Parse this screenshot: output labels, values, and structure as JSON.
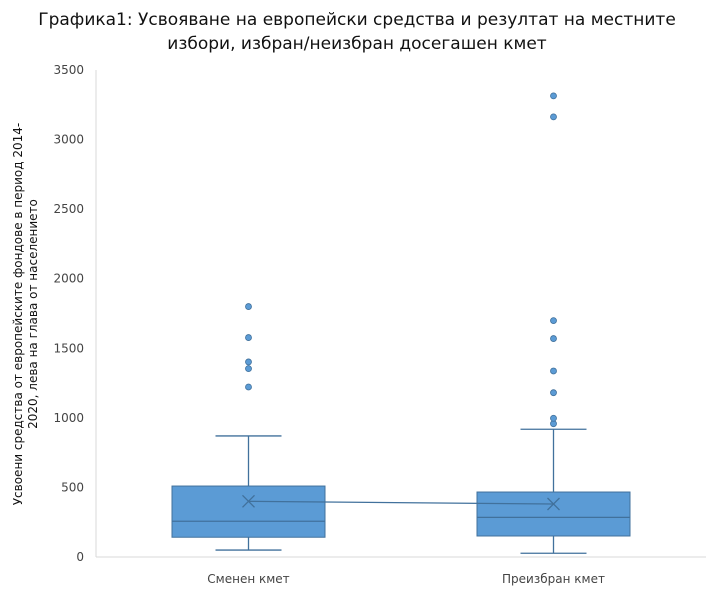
{
  "chart_data": {
    "type": "box",
    "title_lines": [
      "Графика1: Усвояване на европейски средства и резултат на местните",
      "избори, избран/неизбран досегашен кмет"
    ],
    "ylabel_lines": [
      "Усвоени средства от европейските фондове в период 2014-",
      "2020, лева на глава от населението"
    ],
    "xlabel": "",
    "ylim": [
      0,
      3500
    ],
    "yticks": [
      0,
      500,
      1000,
      1500,
      2000,
      2500,
      3000,
      3500
    ],
    "grid": false,
    "color": "#5b9bd5",
    "edge_color": "#41719c",
    "mean_line": true,
    "categories": [
      "Сменен кмет",
      "Преизбран кмет"
    ],
    "boxes": [
      {
        "category": "Сменен кмет",
        "whisker_low": 50,
        "q1": 142,
        "median": 257,
        "q3": 510,
        "whisker_high": 870,
        "mean": 400,
        "outliers": [
          1222,
          1354,
          1402,
          1577,
          1800
        ]
      },
      {
        "category": "Преизбран кмет",
        "whisker_low": 27,
        "q1": 151,
        "median": 285,
        "q3": 467,
        "whisker_high": 918,
        "mean": 381,
        "outliers": [
          958,
          997,
          1181,
          1337,
          1570,
          1699,
          3163,
          3314
        ]
      }
    ]
  }
}
